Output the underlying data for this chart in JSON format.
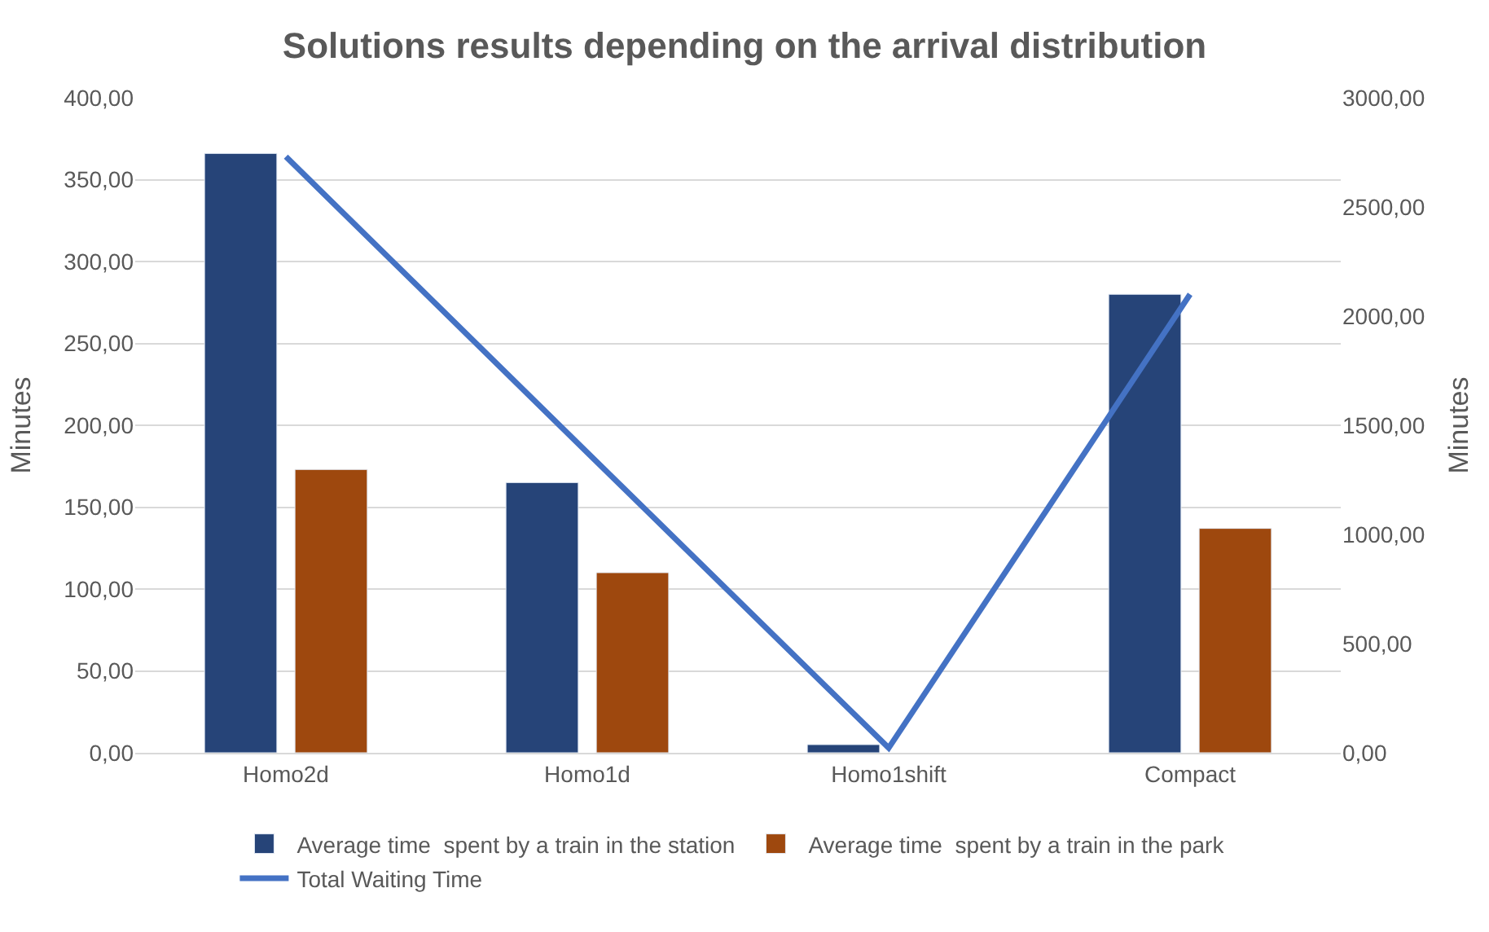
{
  "chart_data": {
    "type": "bar",
    "title": "Solutions results depending on the arrival distribution",
    "categories": [
      "Homo2d",
      "Homo1d",
      "Homo1shift",
      "Compact"
    ],
    "series": [
      {
        "name": "Average time  spent by a train in the station",
        "color": "#264478",
        "values": [
          366,
          165,
          5,
          280
        ]
      },
      {
        "name": "Average time  spent by a train in the park",
        "color": "#9e480e",
        "values": [
          173,
          110,
          null,
          137
        ]
      },
      {
        "name": "Total Waiting Time",
        "type": "line",
        "axis": "y2",
        "color": "#4472c4",
        "values": [
          2730,
          1375,
          22,
          2100
        ]
      }
    ],
    "ylabel": "Minutes",
    "y2label": "Minutes",
    "ylim": [
      0,
      400
    ],
    "yticks": [
      {
        "value": 0,
        "label": "0,00"
      },
      {
        "value": 50,
        "label": "50,00"
      },
      {
        "value": 100,
        "label": "100,00"
      },
      {
        "value": 150,
        "label": "150,00"
      },
      {
        "value": 200,
        "label": "200,00"
      },
      {
        "value": 250,
        "label": "250,00"
      },
      {
        "value": 300,
        "label": "300,00"
      },
      {
        "value": 350,
        "label": "350,00"
      },
      {
        "value": 400,
        "label": "400,00"
      }
    ],
    "y2lim": [
      0,
      3000
    ],
    "y2ticks": [
      {
        "value": 0,
        "label": "0,00"
      },
      {
        "value": 500,
        "label": "500,00"
      },
      {
        "value": 1000,
        "label": "1000,00"
      },
      {
        "value": 1500,
        "label": "1500,00"
      },
      {
        "value": 2000,
        "label": "2000,00"
      },
      {
        "value": 2500,
        "label": "2500,00"
      },
      {
        "value": 3000,
        "label": "3000,00"
      }
    ],
    "grid": "y",
    "legend": "bottom",
    "marker": "none",
    "line_style": "solid"
  }
}
